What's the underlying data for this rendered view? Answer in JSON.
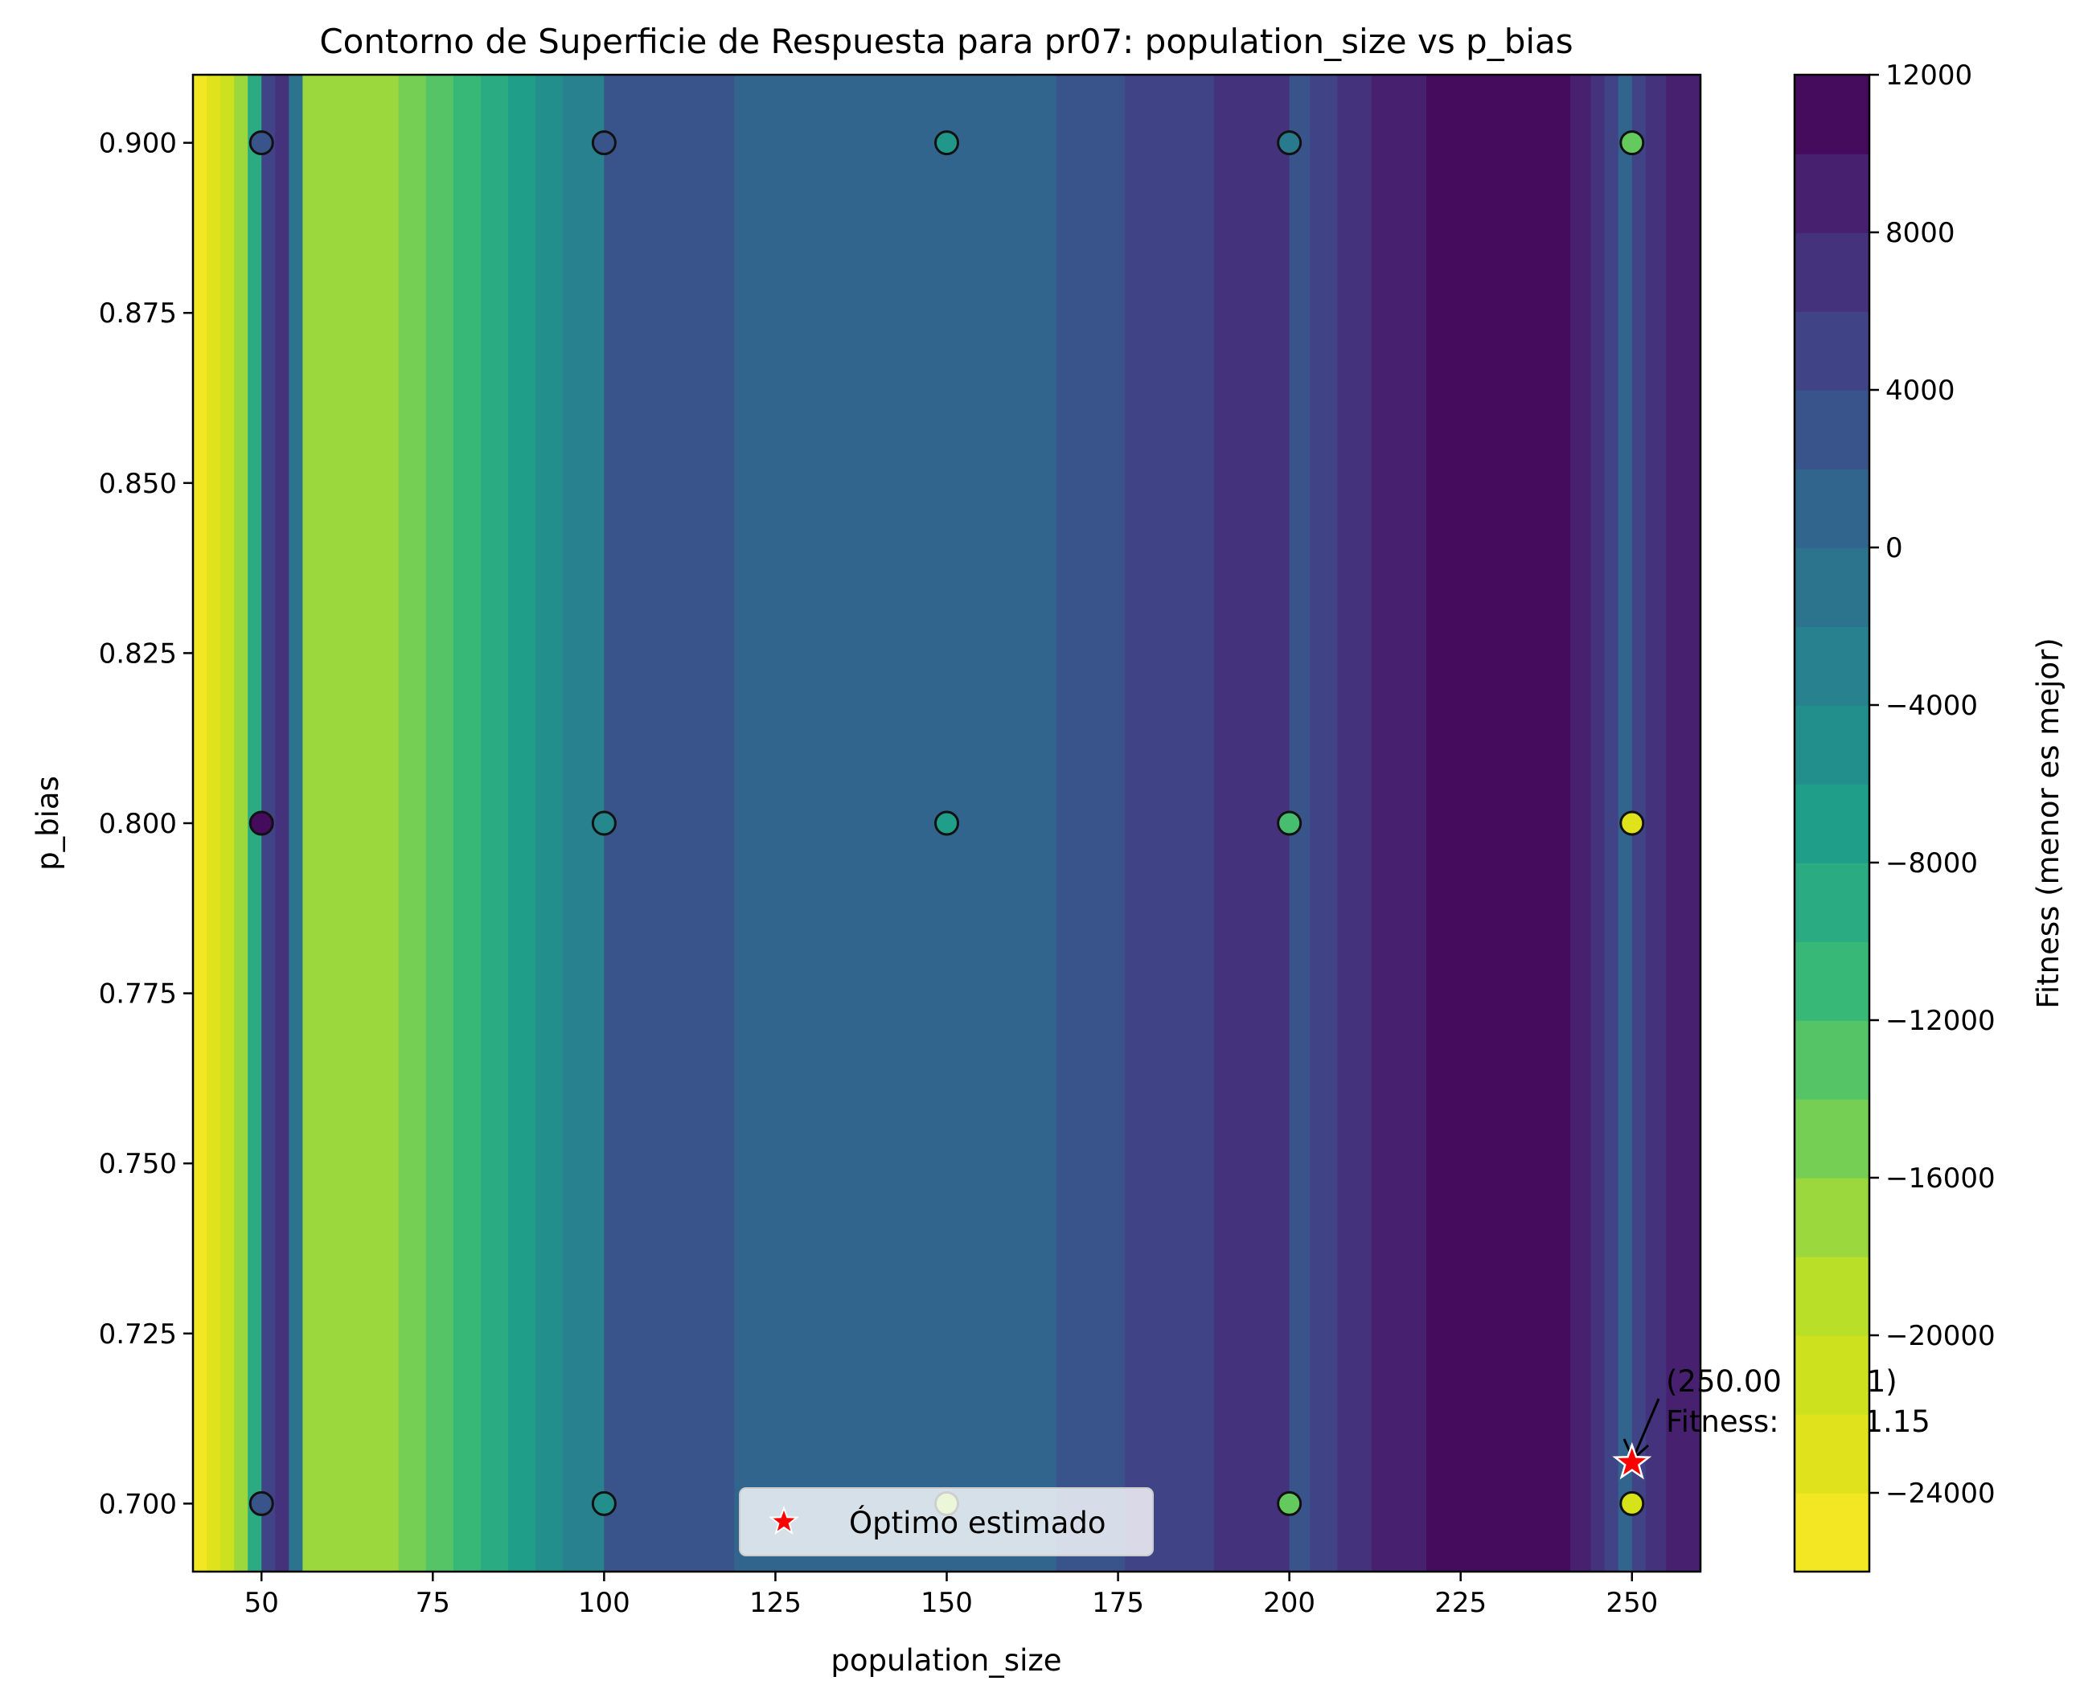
{
  "chart_data": {
    "type": "contour",
    "title": "Contorno de Superficie de Respuesta para pr07: population_size vs p_bias",
    "xlabel": "population_size",
    "ylabel": "p_bias",
    "xlim": [
      40,
      260
    ],
    "ylim": [
      0.69,
      0.91
    ],
    "x_ticks": [
      50,
      75,
      100,
      125,
      150,
      175,
      200,
      225,
      250
    ],
    "y_ticks": [
      0.7,
      0.725,
      0.75,
      0.775,
      0.8,
      0.825,
      0.85,
      0.875,
      0.9
    ],
    "y_tick_labels": [
      "0.700",
      "0.725",
      "0.750",
      "0.775",
      "0.800",
      "0.825",
      "0.850",
      "0.875",
      "0.900"
    ],
    "colorbar": {
      "label": "Fitness (menor es mejor)",
      "colormap": "viridis_r",
      "range": [
        -26000,
        12000
      ],
      "levels": [
        -26000,
        -24000,
        -22000,
        -20000,
        -18000,
        -16000,
        -14000,
        -12000,
        -10000,
        -8000,
        -6000,
        -4000,
        -2000,
        0,
        2000,
        4000,
        6000,
        8000,
        10000,
        12000
      ],
      "ticks": [
        -24000,
        -20000,
        -16000,
        -12000,
        -8000,
        -4000,
        0,
        4000,
        8000,
        12000
      ],
      "tick_labels": [
        "−24000",
        "−20000",
        "−16000",
        "−12000",
        "−8000",
        "−4000",
        "0",
        "4000",
        "8000",
        "12000"
      ]
    },
    "surface_profile": {
      "x": [
        40,
        42,
        44,
        46,
        48,
        50,
        52,
        54,
        56,
        60,
        66,
        70,
        74,
        78,
        82,
        86,
        90,
        94,
        100,
        110,
        119,
        130,
        140,
        150,
        160,
        166,
        176,
        185,
        189,
        194,
        200,
        203,
        207,
        212,
        220,
        230,
        241,
        244,
        246,
        248,
        250,
        252,
        255,
        260
      ],
      "fitness": [
        -25000,
        -23000,
        -21000,
        -17000,
        -9000,
        5000,
        6500,
        -1000,
        -17000,
        -17000,
        -16000,
        -14000,
        -12000,
        -10000,
        -8000,
        -6000,
        -4000,
        -2000,
        3000,
        3000,
        1000,
        1000,
        1000,
        1000,
        1000,
        3000,
        5000,
        5000,
        7000,
        7000,
        3000,
        5000,
        7000,
        9000,
        11000,
        11000,
        9000,
        7000,
        5000,
        1000,
        5000,
        7000,
        9000,
        9000
      ]
    },
    "samples": [
      {
        "x": 50,
        "y": 0.9,
        "fitness": 3000
      },
      {
        "x": 100,
        "y": 0.9,
        "fitness": 3000
      },
      {
        "x": 150,
        "y": 0.9,
        "fitness": -6000
      },
      {
        "x": 200,
        "y": 0.9,
        "fitness": -2000
      },
      {
        "x": 250,
        "y": 0.9,
        "fitness": -14000
      },
      {
        "x": 50,
        "y": 0.8,
        "fitness": 11000
      },
      {
        "x": 100,
        "y": 0.8,
        "fitness": -4000
      },
      {
        "x": 150,
        "y": 0.8,
        "fitness": -7000
      },
      {
        "x": 200,
        "y": 0.8,
        "fitness": -12000
      },
      {
        "x": 250,
        "y": 0.8,
        "fitness": -23000
      },
      {
        "x": 50,
        "y": 0.7,
        "fitness": 3000
      },
      {
        "x": 100,
        "y": 0.7,
        "fitness": -5000
      },
      {
        "x": 150,
        "y": 0.7,
        "fitness": -17000
      },
      {
        "x": 200,
        "y": 0.7,
        "fitness": -14000
      },
      {
        "x": 250,
        "y": 0.7,
        "fitness": -22000
      }
    ],
    "optimum": {
      "x": 250.0,
      "y": 0.706,
      "color": "#ff0000"
    },
    "annotation_lines": [
      "(250.00         1)",
      "Fitness:         1.15"
    ],
    "legend": {
      "label": "Óptimo estimado",
      "placement": "lower center"
    }
  }
}
